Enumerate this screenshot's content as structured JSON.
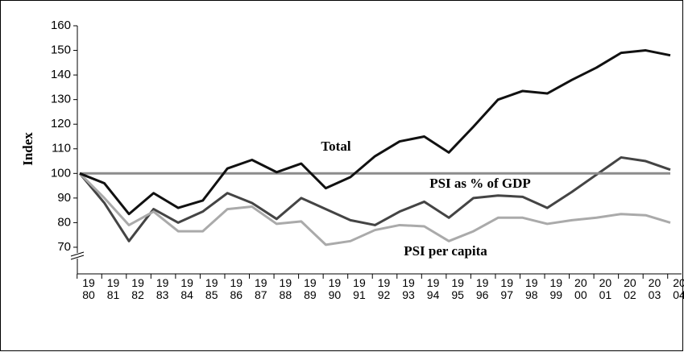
{
  "chart_data": {
    "type": "line",
    "y_label": "Index",
    "categories": [
      "1980",
      "1981",
      "1982",
      "1983",
      "1984",
      "1985",
      "1986",
      "1987",
      "1988",
      "1989",
      "1990",
      "1991",
      "1992",
      "1993",
      "1994",
      "1995",
      "1996",
      "1997",
      "1998",
      "1999",
      "2000",
      "2001",
      "2002",
      "2003",
      "2004"
    ],
    "series": [
      {
        "name": "Total",
        "color": "#111111",
        "values": [
          100,
          96,
          83.5,
          92,
          86,
          89,
          102,
          105.5,
          100.5,
          104,
          94,
          98.5,
          107,
          113,
          115,
          108.5,
          119,
          130,
          133.5,
          132.5,
          138,
          143,
          149,
          150,
          148
        ]
      },
      {
        "name": "PSI as % of GDP",
        "color": "#8c8c8c",
        "values": [
          100,
          100,
          100,
          100,
          100,
          100,
          100,
          100,
          100,
          100,
          100,
          100,
          100,
          100,
          100,
          100,
          100,
          100,
          100,
          100,
          100,
          100,
          100,
          100,
          100
        ]
      },
      {
        "name": "PSI per capita",
        "color": "#aaaaaa",
        "values": [
          100,
          90,
          79,
          84.5,
          76.5,
          76.5,
          85.5,
          86.5,
          79.5,
          80.5,
          71,
          72.5,
          77,
          79,
          78.5,
          72.5,
          76.5,
          82,
          82,
          79.5,
          81,
          82,
          83.5,
          83,
          80
        ]
      },
      {
        "color": "#444444",
        "values": [
          100,
          88,
          72.5,
          85.5,
          80,
          84.5,
          92,
          88,
          81.5,
          90,
          85.5,
          81,
          79,
          84.5,
          88.5,
          82,
          90,
          91,
          90.5,
          86,
          92.5,
          99.5,
          106.5,
          105,
          101.5
        ]
      }
    ],
    "ylim": [
      60,
      160
    ],
    "yticks": [
      70,
      80,
      90,
      100,
      110,
      120,
      130,
      140,
      150,
      160
    ],
    "grid": false
  }
}
